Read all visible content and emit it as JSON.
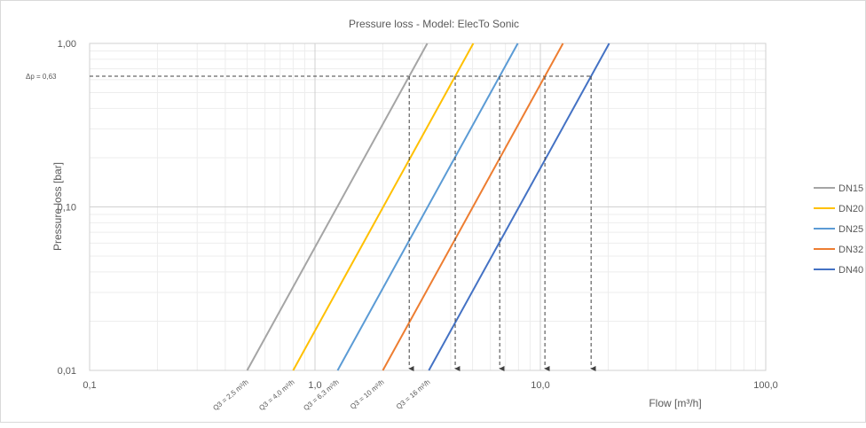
{
  "chart_data": {
    "type": "line",
    "title": "Pressure loss  - Model: ElecTo Sonic",
    "xlabel": "Flow [m³/h]",
    "ylabel": "Pressure loss  [bar]",
    "x_scale": "log",
    "y_scale": "log",
    "xlim": [
      0.1,
      100
    ],
    "ylim": [
      0.01,
      1
    ],
    "x_ticks": [
      0.1,
      1,
      10,
      100
    ],
    "x_tick_labels": [
      "0,1",
      "1,0",
      "10,0",
      "100,0"
    ],
    "y_ticks": [
      0.01,
      0.1,
      1
    ],
    "y_tick_labels": [
      "0,01",
      "0,10",
      "1,00"
    ],
    "grid": true,
    "legend_position": "right",
    "series": [
      {
        "name": "DN15",
        "color": "#a5a5a5",
        "q3": 2.5,
        "x": [
          0.5,
          3.15
        ],
        "y": [
          0.01,
          1
        ]
      },
      {
        "name": "DN20",
        "color": "#ffc000",
        "q3": 4.0,
        "x": [
          0.8,
          5.04
        ],
        "y": [
          0.01,
          1
        ]
      },
      {
        "name": "DN25",
        "color": "#5b9bd5",
        "q3": 6.3,
        "x": [
          1.26,
          7.94
        ],
        "y": [
          0.01,
          1
        ]
      },
      {
        "name": "DN32",
        "color": "#ed7d31",
        "q3": 10,
        "x": [
          2.0,
          12.6
        ],
        "y": [
          0.01,
          1
        ]
      },
      {
        "name": "DN40",
        "color": "#4472c4",
        "q3": 16,
        "x": [
          3.2,
          20.2
        ],
        "y": [
          0.01,
          1
        ]
      }
    ],
    "reference_line": {
      "label": "Δp = 0,63",
      "y": 0.63
    },
    "q3_labels": [
      "Q3 = 2,5 m³/h",
      "Q3 = 4,0 m³/h",
      "Q3 = 6,3 m³/h",
      "Q3 = 10 m³/h",
      "Q3 = 16 m³/h"
    ]
  }
}
